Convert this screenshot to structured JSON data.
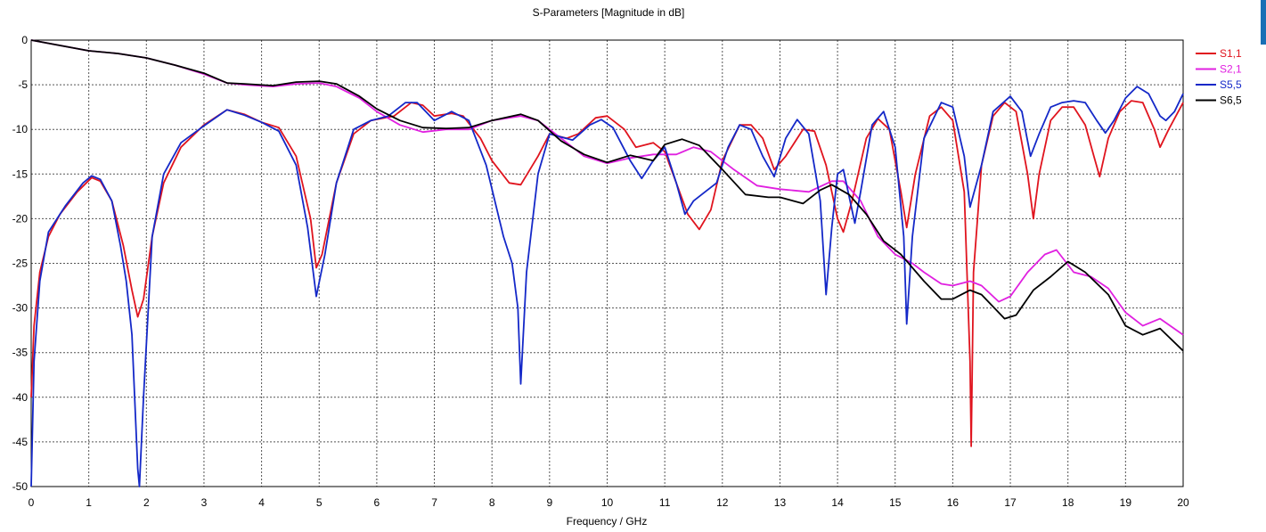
{
  "chart_data": {
    "type": "line",
    "title": "S-Parameters [Magnitude in dB]",
    "xlabel": "Frequency / GHz",
    "ylabel": "",
    "xlim": [
      0,
      20
    ],
    "ylim": [
      -50,
      0
    ],
    "grid": true,
    "grid_style": "dotted",
    "legend_position": "top-right",
    "x_ticks": [
      "0",
      "1",
      "2",
      "3",
      "4",
      "5",
      "6",
      "7",
      "8",
      "9",
      "10",
      "11",
      "12",
      "13",
      "14",
      "15",
      "16",
      "17",
      "18",
      "19",
      "20"
    ],
    "y_ticks": [
      "0",
      "-5",
      "-10",
      "-15",
      "-20",
      "-25",
      "-30",
      "-35",
      "-40",
      "-45",
      "-50"
    ],
    "series": [
      {
        "name": "S1,1",
        "color": "#e0141e",
        "points": [
          [
            0,
            -40
          ],
          [
            0.05,
            -32
          ],
          [
            0.15,
            -26
          ],
          [
            0.3,
            -22
          ],
          [
            0.5,
            -19.5
          ],
          [
            0.8,
            -17
          ],
          [
            1.05,
            -15.4
          ],
          [
            1.2,
            -15.8
          ],
          [
            1.4,
            -18
          ],
          [
            1.6,
            -23
          ],
          [
            1.75,
            -28
          ],
          [
            1.85,
            -31
          ],
          [
            1.95,
            -29
          ],
          [
            2.1,
            -22
          ],
          [
            2.3,
            -16
          ],
          [
            2.6,
            -12
          ],
          [
            3.0,
            -9.5
          ],
          [
            3.4,
            -7.8
          ],
          [
            3.7,
            -8.3
          ],
          [
            4.0,
            -9.2
          ],
          [
            4.3,
            -9.8
          ],
          [
            4.6,
            -13
          ],
          [
            4.85,
            -20
          ],
          [
            4.95,
            -25.5
          ],
          [
            5.05,
            -24
          ],
          [
            5.3,
            -16
          ],
          [
            5.6,
            -10.5
          ],
          [
            5.9,
            -9
          ],
          [
            6.3,
            -8.5
          ],
          [
            6.6,
            -7
          ],
          [
            6.8,
            -7.3
          ],
          [
            7.0,
            -8.5
          ],
          [
            7.3,
            -8.2
          ],
          [
            7.5,
            -8.5
          ],
          [
            7.8,
            -11
          ],
          [
            8.0,
            -13.5
          ],
          [
            8.3,
            -16
          ],
          [
            8.5,
            -16.2
          ],
          [
            8.8,
            -13
          ],
          [
            9.0,
            -10.5
          ],
          [
            9.3,
            -11
          ],
          [
            9.5,
            -10.5
          ],
          [
            9.8,
            -8.7
          ],
          [
            10.0,
            -8.5
          ],
          [
            10.3,
            -10
          ],
          [
            10.5,
            -12
          ],
          [
            10.8,
            -11.5
          ],
          [
            11.0,
            -12.5
          ],
          [
            11.2,
            -16
          ],
          [
            11.4,
            -19.5
          ],
          [
            11.6,
            -21.2
          ],
          [
            11.8,
            -19
          ],
          [
            12.0,
            -13.5
          ],
          [
            12.3,
            -9.5
          ],
          [
            12.5,
            -9.5
          ],
          [
            12.7,
            -11
          ],
          [
            12.9,
            -14.5
          ],
          [
            13.1,
            -13
          ],
          [
            13.4,
            -10
          ],
          [
            13.6,
            -10.2
          ],
          [
            13.8,
            -14
          ],
          [
            14.0,
            -20
          ],
          [
            14.1,
            -21.5
          ],
          [
            14.25,
            -18
          ],
          [
            14.5,
            -11
          ],
          [
            14.7,
            -8.8
          ],
          [
            14.9,
            -10
          ],
          [
            15.1,
            -17
          ],
          [
            15.2,
            -21
          ],
          [
            15.35,
            -15
          ],
          [
            15.6,
            -8.5
          ],
          [
            15.8,
            -7.5
          ],
          [
            16.0,
            -9
          ],
          [
            16.2,
            -17
          ],
          [
            16.3,
            -36
          ],
          [
            16.32,
            -45.5
          ],
          [
            16.36,
            -26
          ],
          [
            16.5,
            -14
          ],
          [
            16.7,
            -8.5
          ],
          [
            16.9,
            -7
          ],
          [
            17.1,
            -8
          ],
          [
            17.3,
            -15
          ],
          [
            17.4,
            -20
          ],
          [
            17.5,
            -15
          ],
          [
            17.7,
            -9
          ],
          [
            17.9,
            -7.5
          ],
          [
            18.1,
            -7.5
          ],
          [
            18.3,
            -9.5
          ],
          [
            18.45,
            -13
          ],
          [
            18.55,
            -15.3
          ],
          [
            18.7,
            -11
          ],
          [
            18.9,
            -8
          ],
          [
            19.1,
            -6.8
          ],
          [
            19.3,
            -7
          ],
          [
            19.5,
            -10
          ],
          [
            19.6,
            -12
          ],
          [
            19.75,
            -10
          ],
          [
            20.0,
            -7
          ]
        ]
      },
      {
        "name": "S2,1",
        "color": "#e020e0",
        "points": [
          [
            0,
            0
          ],
          [
            0.5,
            -0.6
          ],
          [
            1.0,
            -1.2
          ],
          [
            1.5,
            -1.5
          ],
          [
            2.0,
            -2
          ],
          [
            2.5,
            -2.8
          ],
          [
            3.0,
            -3.8
          ],
          [
            3.4,
            -4.8
          ],
          [
            3.7,
            -5
          ],
          [
            4.2,
            -5.2
          ],
          [
            4.6,
            -4.9
          ],
          [
            5.0,
            -4.8
          ],
          [
            5.3,
            -5.2
          ],
          [
            5.7,
            -6.5
          ],
          [
            6.0,
            -8
          ],
          [
            6.4,
            -9.5
          ],
          [
            6.8,
            -10.3
          ],
          [
            7.2,
            -10
          ],
          [
            7.6,
            -10
          ],
          [
            8.0,
            -9
          ],
          [
            8.5,
            -8.5
          ],
          [
            8.8,
            -9
          ],
          [
            9.2,
            -11
          ],
          [
            9.6,
            -13
          ],
          [
            10.0,
            -13.8
          ],
          [
            10.4,
            -13.2
          ],
          [
            10.8,
            -12.8
          ],
          [
            11.2,
            -12.8
          ],
          [
            11.5,
            -12
          ],
          [
            11.8,
            -12.5
          ],
          [
            12.2,
            -14.5
          ],
          [
            12.6,
            -16.3
          ],
          [
            13.0,
            -16.7
          ],
          [
            13.5,
            -17
          ],
          [
            13.9,
            -15.8
          ],
          [
            14.1,
            -15.8
          ],
          [
            14.4,
            -18
          ],
          [
            14.7,
            -22
          ],
          [
            15.0,
            -24
          ],
          [
            15.3,
            -25
          ],
          [
            15.5,
            -26
          ],
          [
            15.8,
            -27.3
          ],
          [
            16.0,
            -27.5
          ],
          [
            16.3,
            -27
          ],
          [
            16.5,
            -27.5
          ],
          [
            16.8,
            -29.3
          ],
          [
            17.0,
            -28.7
          ],
          [
            17.3,
            -26
          ],
          [
            17.6,
            -24
          ],
          [
            17.8,
            -23.5
          ],
          [
            18.1,
            -26
          ],
          [
            18.4,
            -26.5
          ],
          [
            18.7,
            -27.8
          ],
          [
            19.0,
            -30.5
          ],
          [
            19.3,
            -32
          ],
          [
            19.6,
            -31.2
          ],
          [
            20.0,
            -33
          ]
        ]
      },
      {
        "name": "S5,5",
        "color": "#1428c8",
        "points": [
          [
            0,
            -50
          ],
          [
            0.05,
            -36
          ],
          [
            0.15,
            -27
          ],
          [
            0.3,
            -21.5
          ],
          [
            0.6,
            -18.5
          ],
          [
            0.9,
            -16
          ],
          [
            1.05,
            -15.2
          ],
          [
            1.2,
            -15.6
          ],
          [
            1.4,
            -18
          ],
          [
            1.55,
            -23
          ],
          [
            1.65,
            -27
          ],
          [
            1.75,
            -33
          ],
          [
            1.85,
            -48
          ],
          [
            1.88,
            -50
          ],
          [
            1.95,
            -40
          ],
          [
            2.1,
            -22
          ],
          [
            2.3,
            -15
          ],
          [
            2.6,
            -11.5
          ],
          [
            3.0,
            -9.6
          ],
          [
            3.4,
            -7.8
          ],
          [
            3.7,
            -8.4
          ],
          [
            4.0,
            -9.2
          ],
          [
            4.3,
            -10.2
          ],
          [
            4.6,
            -14
          ],
          [
            4.8,
            -21
          ],
          [
            4.95,
            -28.7
          ],
          [
            5.1,
            -24
          ],
          [
            5.3,
            -16
          ],
          [
            5.6,
            -10
          ],
          [
            5.9,
            -9
          ],
          [
            6.2,
            -8.5
          ],
          [
            6.5,
            -7
          ],
          [
            6.7,
            -7
          ],
          [
            7.0,
            -9
          ],
          [
            7.3,
            -8
          ],
          [
            7.6,
            -9
          ],
          [
            7.9,
            -14
          ],
          [
            8.2,
            -22
          ],
          [
            8.35,
            -25
          ],
          [
            8.45,
            -30
          ],
          [
            8.5,
            -38.5
          ],
          [
            8.6,
            -26
          ],
          [
            8.8,
            -15
          ],
          [
            9.0,
            -10.5
          ],
          [
            9.4,
            -11.2
          ],
          [
            9.7,
            -9.5
          ],
          [
            9.9,
            -8.9
          ],
          [
            10.1,
            -9.8
          ],
          [
            10.4,
            -13.5
          ],
          [
            10.6,
            -15.5
          ],
          [
            10.8,
            -13.5
          ],
          [
            11.0,
            -12
          ],
          [
            11.2,
            -16
          ],
          [
            11.35,
            -19.5
          ],
          [
            11.5,
            -18
          ],
          [
            11.7,
            -17
          ],
          [
            11.9,
            -16
          ],
          [
            12.1,
            -12
          ],
          [
            12.3,
            -9.5
          ],
          [
            12.5,
            -10
          ],
          [
            12.7,
            -13
          ],
          [
            12.9,
            -15.3
          ],
          [
            13.1,
            -11
          ],
          [
            13.3,
            -8.9
          ],
          [
            13.5,
            -10.5
          ],
          [
            13.7,
            -18
          ],
          [
            13.8,
            -28.5
          ],
          [
            13.9,
            -21
          ],
          [
            14.0,
            -15
          ],
          [
            14.1,
            -14.5
          ],
          [
            14.3,
            -20.5
          ],
          [
            14.4,
            -17
          ],
          [
            14.6,
            -9.5
          ],
          [
            14.8,
            -8
          ],
          [
            15.0,
            -12
          ],
          [
            15.15,
            -22
          ],
          [
            15.2,
            -31.8
          ],
          [
            15.3,
            -22
          ],
          [
            15.5,
            -11
          ],
          [
            15.8,
            -7
          ],
          [
            16.0,
            -7.5
          ],
          [
            16.2,
            -13
          ],
          [
            16.3,
            -18.7
          ],
          [
            16.5,
            -14
          ],
          [
            16.7,
            -8
          ],
          [
            17.0,
            -6.3
          ],
          [
            17.2,
            -8
          ],
          [
            17.35,
            -13
          ],
          [
            17.5,
            -10.5
          ],
          [
            17.7,
            -7.5
          ],
          [
            17.9,
            -7
          ],
          [
            18.1,
            -6.8
          ],
          [
            18.3,
            -7
          ],
          [
            18.5,
            -9
          ],
          [
            18.65,
            -10.4
          ],
          [
            18.8,
            -9
          ],
          [
            19.0,
            -6.5
          ],
          [
            19.2,
            -5.2
          ],
          [
            19.4,
            -6
          ],
          [
            19.6,
            -8.5
          ],
          [
            19.7,
            -9
          ],
          [
            19.85,
            -8
          ],
          [
            20.0,
            -6
          ]
        ]
      },
      {
        "name": "S6,5",
        "color": "#000000",
        "points": [
          [
            0,
            0
          ],
          [
            0.5,
            -0.6
          ],
          [
            1.0,
            -1.2
          ],
          [
            1.5,
            -1.5
          ],
          [
            2.0,
            -2
          ],
          [
            2.5,
            -2.8
          ],
          [
            3.0,
            -3.7
          ],
          [
            3.4,
            -4.8
          ],
          [
            3.7,
            -4.9
          ],
          [
            4.2,
            -5.1
          ],
          [
            4.6,
            -4.7
          ],
          [
            5.0,
            -4.6
          ],
          [
            5.3,
            -4.9
          ],
          [
            5.7,
            -6.3
          ],
          [
            6.0,
            -7.7
          ],
          [
            6.4,
            -9
          ],
          [
            6.8,
            -9.8
          ],
          [
            7.2,
            -9.9
          ],
          [
            7.6,
            -9.8
          ],
          [
            8.0,
            -9
          ],
          [
            8.5,
            -8.3
          ],
          [
            8.8,
            -9
          ],
          [
            9.2,
            -11.3
          ],
          [
            9.6,
            -12.8
          ],
          [
            10.0,
            -13.7
          ],
          [
            10.4,
            -12.9
          ],
          [
            10.8,
            -13.5
          ],
          [
            11.0,
            -11.7
          ],
          [
            11.3,
            -11.1
          ],
          [
            11.6,
            -11.8
          ],
          [
            12.0,
            -14.5
          ],
          [
            12.4,
            -17.3
          ],
          [
            12.8,
            -17.6
          ],
          [
            13.0,
            -17.6
          ],
          [
            13.4,
            -18.3
          ],
          [
            13.7,
            -16.8
          ],
          [
            13.9,
            -16.2
          ],
          [
            14.2,
            -17.3
          ],
          [
            14.5,
            -19.5
          ],
          [
            14.8,
            -22.5
          ],
          [
            15.1,
            -24
          ],
          [
            15.5,
            -27
          ],
          [
            15.8,
            -29
          ],
          [
            16.0,
            -29
          ],
          [
            16.3,
            -28
          ],
          [
            16.5,
            -28.5
          ],
          [
            16.9,
            -31.2
          ],
          [
            17.1,
            -30.8
          ],
          [
            17.4,
            -28
          ],
          [
            17.7,
            -26.5
          ],
          [
            18.0,
            -24.8
          ],
          [
            18.3,
            -26
          ],
          [
            18.7,
            -28.5
          ],
          [
            19.0,
            -32
          ],
          [
            19.3,
            -33
          ],
          [
            19.6,
            -32.3
          ],
          [
            20.0,
            -34.8
          ]
        ]
      }
    ]
  },
  "ui": {
    "edge_strip_color": "#1a6fb5"
  }
}
